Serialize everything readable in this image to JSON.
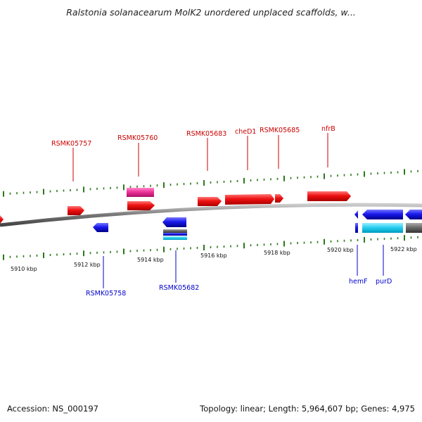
{
  "title": "Ralstonia solanacearum MolK2 unordered unplaced scaffolds, w...",
  "footer": {
    "accession": "Accession: NS_000197",
    "summary": "Topology: linear; Length: 5,964,607 bp; Genes: 4,975"
  },
  "scale": {
    "unit": "kbp",
    "tick_labels": [
      "5910 kbp",
      "5912 kbp",
      "5914 kbp",
      "5916 kbp",
      "5918 kbp",
      "5920 kbp",
      "5922 kbp"
    ]
  },
  "colors": {
    "forward_gene": "#ee1111",
    "reverse_gene": "#1a1aee",
    "highlight_gene": "#ee3399",
    "cyan_feature": "#22ccee",
    "grey_feature": "#666666",
    "tick": "#2a7a1a",
    "backbone": "#888888"
  },
  "top_labels": [
    "RSMK05757",
    "RSMK05760",
    "RSMK05683",
    "cheD1",
    "RSMK05685",
    "nfrB"
  ],
  "bottom_labels": [
    "RSMK05758",
    "RSMK05682",
    "hemF",
    "purD"
  ]
}
